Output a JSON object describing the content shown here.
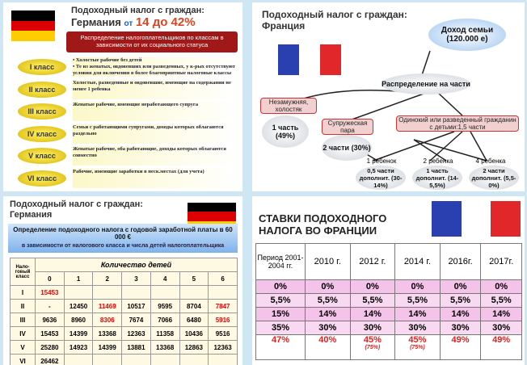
{
  "germany_classes": {
    "title": "Подоходный налог с граждан:",
    "country": "Германия",
    "range_prefix": "от",
    "range": "14 до 42%",
    "banner": "Распределение налогоплательщиков по классам в зависимости от их социального статуса",
    "classes": [
      {
        "name": "I класс",
        "lines": [
          "• Холостые рабочие без детей",
          "• Те из женатых, овдовевших или разведенных, у к-рых отсутствуют условия для включения в более благоприятные налоговые классы"
        ]
      },
      {
        "name": "II класс",
        "lines": [
          "Холостые, разведенные и овдовевшие, имеющие на содержании не менее 1 ребенка"
        ]
      },
      {
        "name": "III класс",
        "lines": [
          "Женатые рабочие, имеющие неработающего супруга"
        ]
      },
      {
        "name": "IV класс",
        "lines": [
          "Семьи с работающими супругами, доходы которых облагаются раздельно"
        ]
      },
      {
        "name": "V класс",
        "lines": [
          "Женатые рабочие, оба работающие, доходы которых облагаются совместно"
        ]
      },
      {
        "name": "VI класс",
        "lines": [
          "Рабочие, имеющие заработки в неск.местах (для учета)"
        ]
      }
    ]
  },
  "france_diagram": {
    "title": "Подоходный налог с граждан: Франция",
    "nodes": {
      "income": "Доход семьи (120.000 е)",
      "split": "Распределение на части",
      "single": "Незамужняя, холостяк",
      "single_share": "1 часть (49%)",
      "couple": "Супружеская пара",
      "couple_share": "2 части (30%)",
      "parent": "Одинокий или разведенный гражданин с детьми:1,5 части",
      "child1": "1 ребенок",
      "child1_share": "0,5 части дополнит. (30-14%)",
      "child2": "2 ребенка",
      "child2_share": "1 часть дополнит. (14-5,5%)",
      "child4": "4 ребенка",
      "child4_share": "2 части дополнит. (5,5-0%)"
    }
  },
  "germany_table": {
    "title": "Подоходный налог с граждан: Германия",
    "banner": "Определение подоходного налога с годовой заработной платы в 60 000 €",
    "banner_sub": "в зависимости от налогового класса и числа детей налогоплательщика",
    "corner": "Нало-говый класс",
    "children_header": "Количество детей",
    "columns": [
      "0",
      "1",
      "2",
      "3",
      "4",
      "5",
      "6"
    ],
    "rows": [
      {
        "class": "I",
        "cells": [
          "15453"
        ]
      },
      {
        "class": "II",
        "cells": [
          "-",
          "12450",
          "11469",
          "10517",
          "9595",
          "8704",
          "7847"
        ]
      },
      {
        "class": "III",
        "cells": [
          "9636",
          "8960",
          "8306",
          "7674",
          "7066",
          "6480",
          "5916"
        ]
      },
      {
        "class": "IV",
        "cells": [
          "15453",
          "14399",
          "13368",
          "12363",
          "11358",
          "10436",
          "9516"
        ]
      },
      {
        "class": "V",
        "cells": [
          "25280",
          "14923",
          "14399",
          "13881",
          "13368",
          "12863",
          "12363"
        ]
      },
      {
        "class": "VI",
        "cells": [
          "26462"
        ]
      }
    ]
  },
  "france_table": {
    "title": "СТАВКИ ПОДОХОДНОГО НАЛОГА ВО ФРАНЦИИ",
    "header": [
      "Период 2001-2004 гг.",
      "2010 г.",
      "2012 г.",
      "2014 г.",
      "2016г.",
      "2017г."
    ],
    "rows": [
      [
        "0%",
        "0%",
        "0%",
        "0%",
        "0%",
        "0%"
      ],
      [
        "5,5%",
        "5,5%",
        "5,5%",
        "5,5%",
        "5,5%",
        "5,5%"
      ],
      [
        "15%",
        "14%",
        "14%",
        "14%",
        "14%",
        "14%"
      ],
      [
        "35%",
        "30%",
        "30%",
        "30%",
        "30%",
        "30%"
      ],
      [
        "47%",
        "40%",
        "45%",
        "45%",
        "49%",
        "49%"
      ]
    ],
    "notes": [
      null,
      null,
      "(75%)",
      "(75%)",
      null,
      null
    ]
  }
}
